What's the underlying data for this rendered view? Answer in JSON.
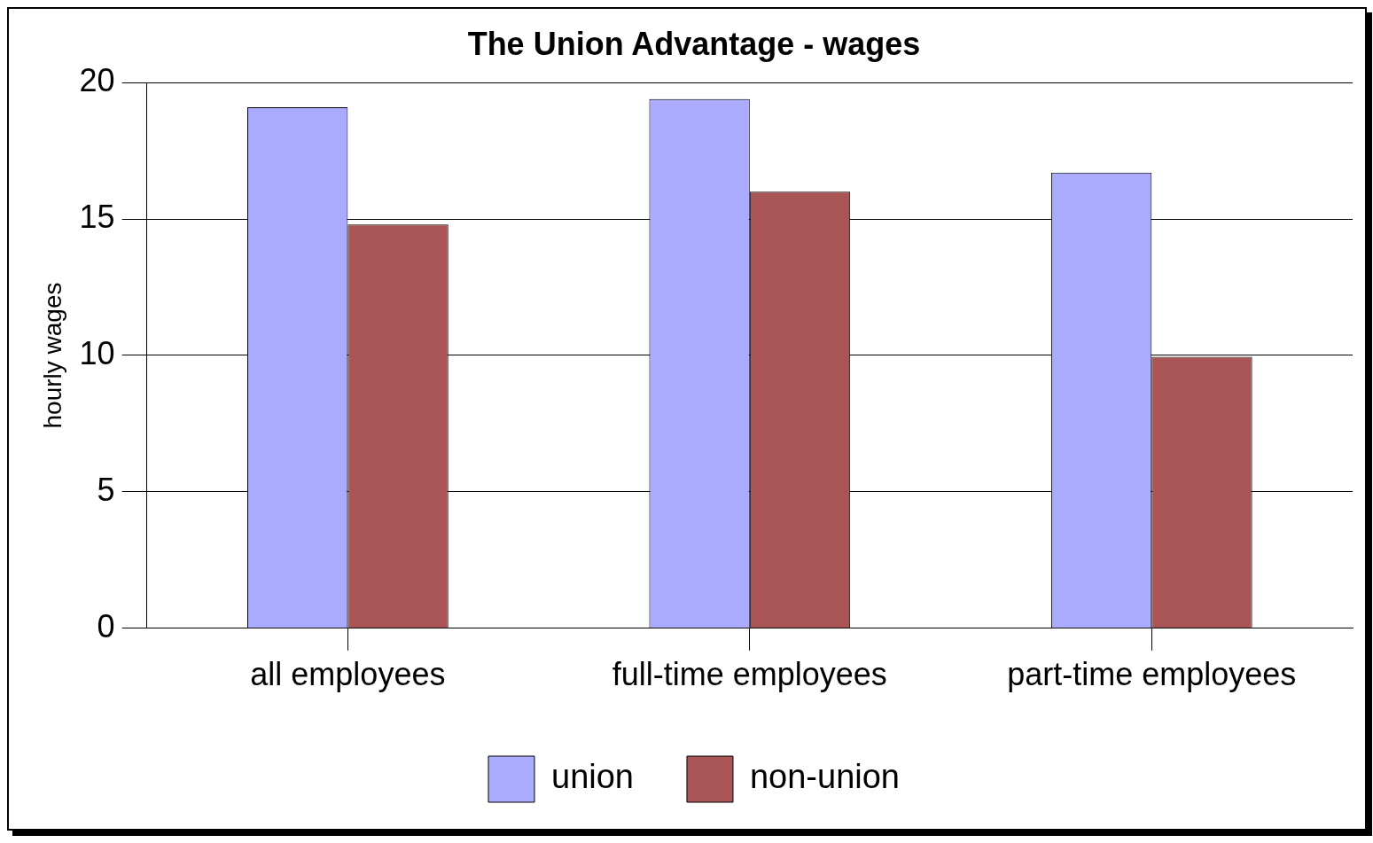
{
  "chart_data": {
    "type": "bar",
    "title": "The Union Advantage - wages",
    "ylabel": "hourly wages",
    "categories": [
      "all employees",
      "full-time employees",
      "part-time employees"
    ],
    "series": [
      {
        "name": "union",
        "color": "#aaaaff",
        "values": [
          19.1,
          19.4,
          16.7
        ]
      },
      {
        "name": "non-union",
        "color": "#aa5555",
        "values": [
          14.8,
          16.0,
          9.95
        ]
      }
    ],
    "ylim": [
      0,
      20
    ],
    "yticks": [
      0,
      5,
      10,
      15,
      20
    ],
    "grid": "y",
    "legend": "bottom"
  }
}
